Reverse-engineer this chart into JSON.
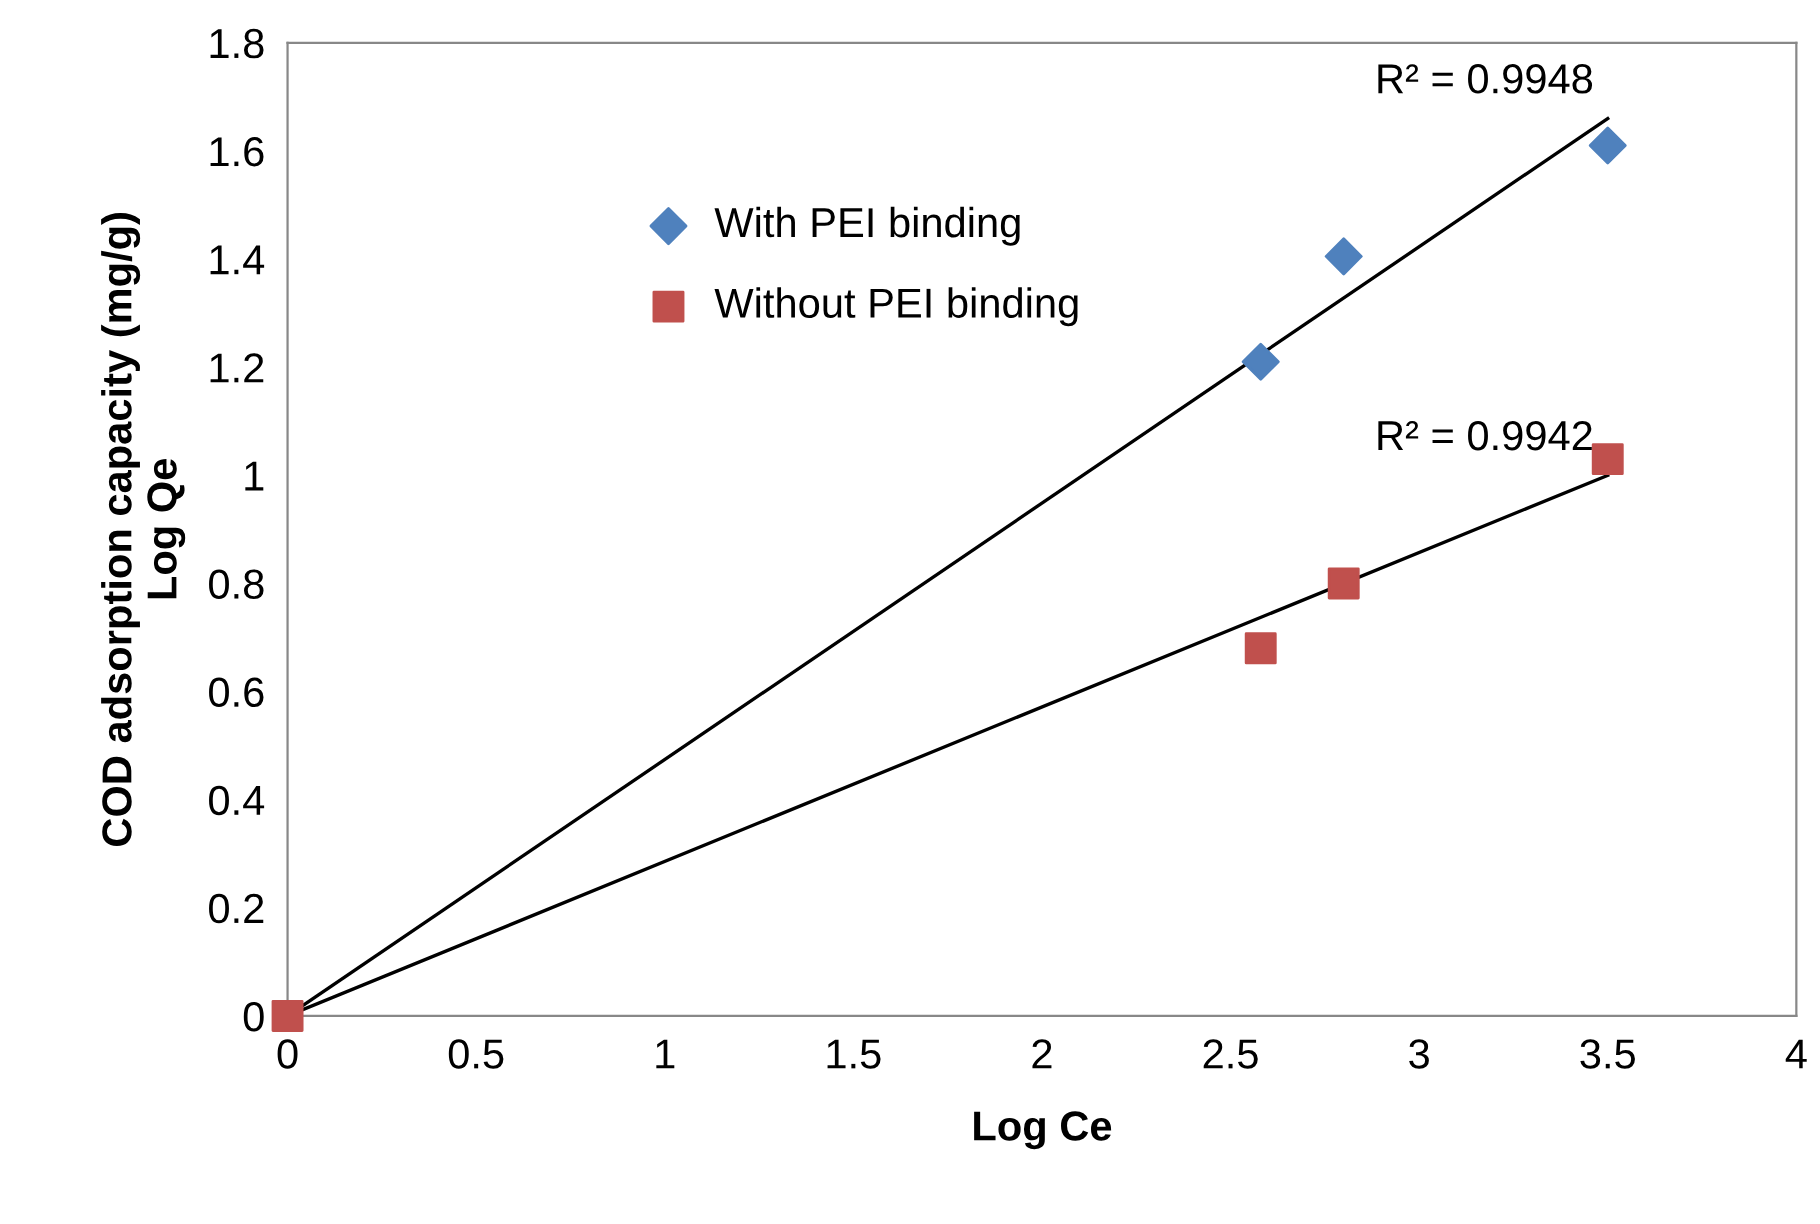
{
  "chart_data": {
    "type": "scatter",
    "xlabel": "Log Ce",
    "ylabel": "COD adsorption capacity (mg/g)\nLog Qe",
    "xlim": [
      0,
      4
    ],
    "ylim": [
      0,
      1.8
    ],
    "xticks": [
      0,
      0.5,
      1,
      1.5,
      2,
      2.5,
      3,
      3.5,
      4
    ],
    "yticks": [
      0,
      0.2,
      0.4,
      0.6,
      0.8,
      1,
      1.2,
      1.4,
      1.6,
      1.8
    ],
    "grid": false,
    "legend": "top left",
    "series": [
      {
        "name": "With PEI binding",
        "color": "#4f81bd",
        "marker": "diamond",
        "x": [
          2.58,
          2.8,
          3.5
        ],
        "values": [
          1.21,
          1.405,
          1.61
        ]
      },
      {
        "name": "Without PEI binding",
        "color": "#c0504d",
        "marker": "square",
        "x": [
          0,
          2.58,
          2.8,
          3.5
        ],
        "values": [
          0,
          0.68,
          0.8,
          1.03
        ]
      },
      {
        "type": "line",
        "color": "#000000",
        "marker": "none",
        "line_style": "solid",
        "x": [
          0,
          3.5
        ],
        "values": [
          0,
          1.66
        ]
      },
      {
        "type": "line",
        "color": "#000000",
        "marker": "none",
        "line_style": "solid",
        "x": [
          0,
          3.5
        ],
        "values": [
          0,
          1.0
        ]
      }
    ],
    "annotations": [
      {
        "text": "R² = 0.9948",
        "x": 3.5,
        "y": 1.66
      },
      {
        "text": "R² = 0.9942",
        "x": 3.5,
        "y": 1.0
      }
    ]
  }
}
